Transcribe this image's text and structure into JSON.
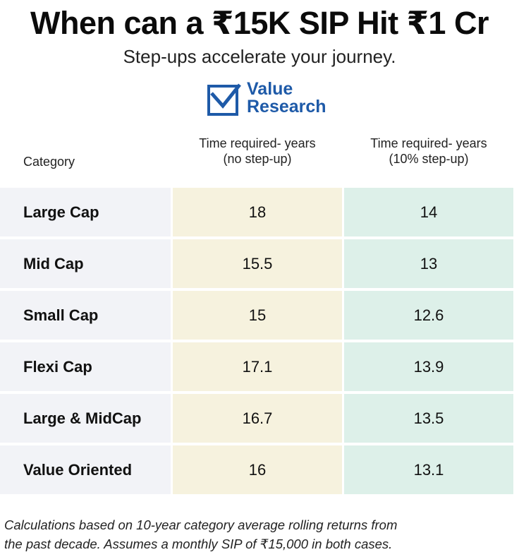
{
  "title": "When can a ₹15K SIP Hit ₹1 Cr",
  "subtitle": "Step-ups accelerate your journey.",
  "logo": {
    "line1": "Value",
    "line2": "Research",
    "icon": "checkbox-check-icon",
    "color": "#1e5aa8"
  },
  "colors": {
    "category_bg": "#f2f3f7",
    "no_stepup_bg": "#f6f2de",
    "stepup_bg": "#ddf0e9"
  },
  "chart_data": {
    "type": "table",
    "title": "When can a ₹15K SIP Hit ₹1 Cr",
    "subtitle": "Step-ups accelerate your journey.",
    "columns": {
      "category": "Category",
      "no_stepup_line1": "Time required- years",
      "no_stepup_line2": "(no step-up)",
      "stepup_line1": "Time required- years",
      "stepup_line2": "(10% step-up)"
    },
    "rows": [
      {
        "category": "Large Cap",
        "no_stepup": "18",
        "stepup": "14"
      },
      {
        "category": "Mid Cap",
        "no_stepup": "15.5",
        "stepup": "13"
      },
      {
        "category": "Small Cap",
        "no_stepup": "15",
        "stepup": "12.6"
      },
      {
        "category": "Flexi Cap",
        "no_stepup": "17.1",
        "stepup": "13.9"
      },
      {
        "category": "Large & MidCap",
        "no_stepup": "16.7",
        "stepup": "13.5"
      },
      {
        "category": "Value Oriented",
        "no_stepup": "16",
        "stepup": "13.1"
      }
    ]
  },
  "footnote": {
    "line1": "Calculations based on 10-year category average rolling returns from",
    "line2": "the past decade. Assumes a monthly SIP of ₹15,000 in both cases."
  }
}
